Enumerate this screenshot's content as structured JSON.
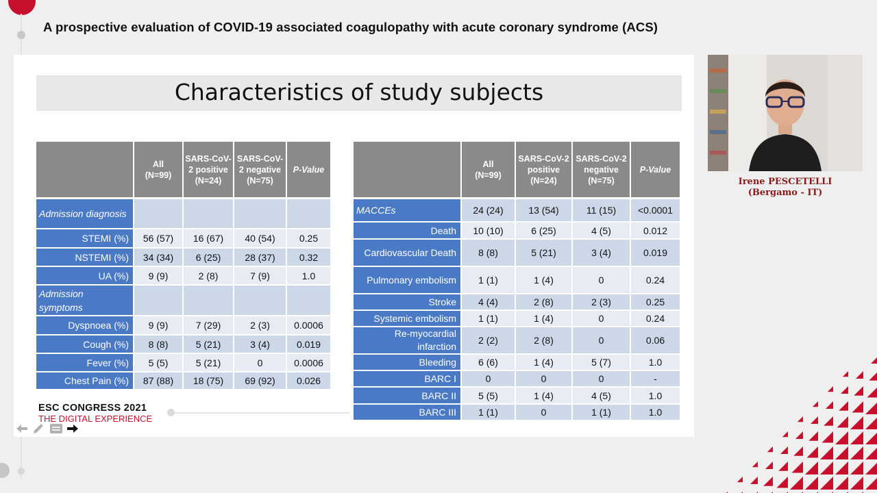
{
  "header": {
    "title": "A prospective evaluation of COVID-19 associated coagulopathy with acute coronary syndrome (ACS)"
  },
  "slide": {
    "title": "Characteristics of study subjects"
  },
  "left_table": {
    "headers": [
      "",
      "All (N=99)",
      "SARS-CoV-2 positive (N=24)",
      "SARS-CoV-2 negative (N=75)",
      "P-Value"
    ],
    "header_lines": [
      [],
      [
        "All",
        "(N=99)"
      ],
      [
        "SARS-CoV-",
        "2 positive",
        "(N=24)"
      ],
      [
        "SARS-CoV-",
        "2 negative",
        "(N=75)"
      ],
      [
        "P-Value"
      ]
    ],
    "rows": [
      {
        "label": "Admission diagnosis",
        "section": true,
        "values": [
          "",
          "",
          "",
          ""
        ]
      },
      {
        "label": "STEMI (%)",
        "values": [
          "56 (57)",
          "16 (67)",
          "40 (54)",
          "0.25"
        ]
      },
      {
        "label": "NSTEMI (%)",
        "values": [
          "34 (34)",
          "6 (25)",
          "28 (37)",
          "0.32"
        ]
      },
      {
        "label": "UA (%)",
        "values": [
          "9 (9)",
          "2 (8)",
          "7 (9)",
          "1.0"
        ]
      },
      {
        "label": "Admission symptoms",
        "section": true,
        "values": [
          "",
          "",
          "",
          ""
        ]
      },
      {
        "label": "Dyspnoea (%)",
        "values": [
          "9 (9)",
          "7 (29)",
          "2 (3)",
          "0.0006"
        ]
      },
      {
        "label": "Cough (%)",
        "values": [
          "8 (8)",
          "5 (21)",
          "3 (4)",
          "0.019"
        ]
      },
      {
        "label": "Fever (%)",
        "values": [
          "5 (5)",
          "5 (21)",
          "0",
          "0.0006"
        ]
      },
      {
        "label": "Chest Pain (%)",
        "values": [
          "87 (88)",
          "18 (75)",
          "69 (92)",
          "0.026"
        ]
      }
    ]
  },
  "right_table": {
    "headers": [
      "",
      "All (N=99)",
      "SARS-CoV-2 positive (N=24)",
      "SARS-CoV-2 negative (N=75)",
      "P-Value"
    ],
    "header_lines": [
      [],
      [
        "All",
        "(N=99)"
      ],
      [
        "SARS-CoV-2",
        "positive",
        "(N=24)"
      ],
      [
        "SARS-CoV-2",
        "negative",
        "(N=75)"
      ],
      [
        "P-Value"
      ]
    ],
    "rows": [
      {
        "label": "MACCEs",
        "section": true,
        "values": [
          "24 (24)",
          "13 (54)",
          "11 (15)",
          "<0.0001"
        ]
      },
      {
        "label": "Death",
        "values": [
          "10 (10)",
          "6 (25)",
          "4 (5)",
          "0.012"
        ]
      },
      {
        "label": "Cardiovascular Death",
        "values": [
          "8 (8)",
          "5 (21)",
          "3 (4)",
          "0.019"
        ]
      },
      {
        "label": "Pulmonary embolism",
        "values": [
          "1 (1)",
          "1 (4)",
          "0",
          "0.24"
        ]
      },
      {
        "label": "Stroke",
        "values": [
          "4 (4)",
          "2 (8)",
          "2 (3)",
          "0.25"
        ]
      },
      {
        "label": "Systemic embolism",
        "values": [
          "1 (1)",
          "1 (4)",
          "0",
          "0.24"
        ]
      },
      {
        "label": "Re-myocardial infarction",
        "values": [
          "2 (2)",
          "2 (8)",
          "0",
          "0.06"
        ]
      },
      {
        "label": "Bleeding",
        "values": [
          "6 (6)",
          "1 (4)",
          "5 (7)",
          "1.0"
        ]
      },
      {
        "label": "BARC I",
        "values": [
          "0",
          "0",
          "0",
          "-"
        ]
      },
      {
        "label": "BARC II",
        "values": [
          "5 (5)",
          "1 (4)",
          "4 (5)",
          "1.0"
        ]
      },
      {
        "label": "BARC III",
        "values": [
          "1 (1)",
          "0",
          "1 (1)",
          "1.0"
        ]
      }
    ]
  },
  "logo": {
    "line1": "ESC CONGRESS 2021",
    "line2": "THE DIGITAL EXPERIENCE"
  },
  "presenter": {
    "name": "Irene PESCETELLI",
    "affiliation": "(Bergamo - IT)"
  },
  "controls": {
    "icons": [
      "arrow-left-icon",
      "pencil-icon",
      "menu-icon",
      "arrow-right-icon"
    ]
  },
  "colors": {
    "brand_red": "#c8102e",
    "table_header_gray": "#8a8a8a",
    "label_blue": "#4a7ac6",
    "row_light_blue": "#ccd7e8",
    "row_lighter_blue": "#e7ecf4"
  }
}
